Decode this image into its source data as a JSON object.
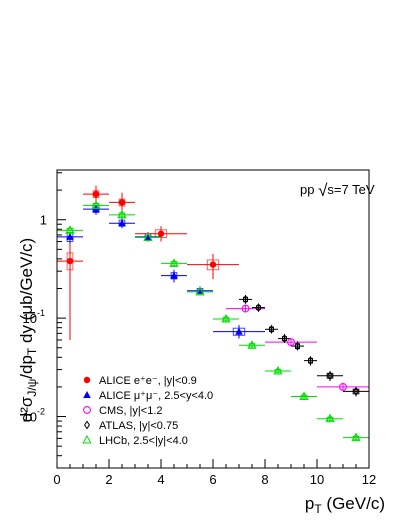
{
  "chart_data": {
    "type": "scatter",
    "xlabel": "p_T (GeV/c)",
    "ylabel": "d²σ_J/ψ /dp_T dy (μb/GeV/c)",
    "xlim": [
      0,
      12
    ],
    "ylim": [
      0.003,
      3.2
    ],
    "yscale": "log",
    "grid": false,
    "legend_position": "bottom-left",
    "annotation": {
      "pre": "pp ",
      "root": "√",
      "post": "s=7 TeV"
    },
    "x_ticks": [
      0,
      2,
      4,
      6,
      8,
      10,
      12
    ],
    "y_ticks": [
      {
        "value": 1,
        "label": "1",
        "exp": ""
      },
      {
        "value": 0.1,
        "label": "10",
        "exp": "-1"
      },
      {
        "value": 0.01,
        "label": "10",
        "exp": "-2"
      }
    ],
    "series": [
      {
        "name": "ALICE e⁺e⁻, |y|<0.9",
        "color": "#ff0000",
        "marker": "filled-circle",
        "box_color": "#ff5050",
        "points": [
          {
            "x": 0.5,
            "y": 0.38,
            "xerr": 0.5,
            "ylo": 0.06,
            "yhi": 0.72,
            "box": [
              0.31,
              0.46
            ]
          },
          {
            "x": 1.5,
            "y": 1.82,
            "xerr": 0.5,
            "ylo": 1.45,
            "yhi": 2.22,
            "box": [
              1.68,
              1.97
            ]
          },
          {
            "x": 2.5,
            "y": 1.5,
            "xerr": 0.5,
            "ylo": 1.22,
            "yhi": 1.88,
            "box": [
              1.38,
              1.62
            ]
          },
          {
            "x": 4.0,
            "y": 0.72,
            "xerr": 1.0,
            "ylo": 0.6,
            "yhi": 0.86,
            "box": [
              0.66,
              0.79
            ]
          },
          {
            "x": 6.0,
            "y": 0.35,
            "xerr": 1.0,
            "ylo": 0.25,
            "yhi": 0.45,
            "box": [
              0.31,
              0.39
            ]
          }
        ]
      },
      {
        "name": "ALICE μ⁺μ⁻, 2.5<y<4.0",
        "color": "#0000ff",
        "marker": "filled-triangle",
        "box_color": "#3333ff",
        "points": [
          {
            "x": 0.5,
            "y": 0.67,
            "xerr": 0.5,
            "ylo": 0.57,
            "yhi": 0.78,
            "box": [
              0.6,
              0.74
            ]
          },
          {
            "x": 1.5,
            "y": 1.28,
            "xerr": 0.5,
            "ylo": 1.12,
            "yhi": 1.45,
            "box": [
              1.18,
              1.38
            ]
          },
          {
            "x": 2.5,
            "y": 0.92,
            "xerr": 0.5,
            "ylo": 0.82,
            "yhi": 1.03,
            "box": [
              0.86,
              0.99
            ]
          },
          {
            "x": 3.5,
            "y": 0.67,
            "xerr": 0.5,
            "ylo": 0.6,
            "yhi": 0.75,
            "box": [
              0.62,
              0.72
            ]
          },
          {
            "x": 4.5,
            "y": 0.27,
            "xerr": 0.5,
            "ylo": 0.23,
            "yhi": 0.31,
            "box": [
              0.25,
              0.29
            ]
          },
          {
            "x": 5.5,
            "y": 0.19,
            "xerr": 0.5,
            "ylo": 0.17,
            "yhi": 0.21,
            "box": [
              0.18,
              0.2
            ]
          },
          {
            "x": 7.0,
            "y": 0.073,
            "xerr": 1.0,
            "ylo": 0.062,
            "yhi": 0.085,
            "box": [
              0.067,
              0.079
            ]
          }
        ]
      },
      {
        "name": "CMS, |y|<1.2",
        "color": "#ff00ff",
        "marker": "open-circle",
        "box_color": "",
        "points": [
          {
            "x": 7.25,
            "y": 0.125,
            "xerr": 0.75,
            "ylo": 0.115,
            "yhi": 0.135,
            "box": null
          },
          {
            "x": 9.0,
            "y": 0.057,
            "xerr": 1.0,
            "ylo": 0.052,
            "yhi": 0.062,
            "box": null
          },
          {
            "x": 11.0,
            "y": 0.02,
            "xerr": 1.0,
            "ylo": 0.018,
            "yhi": 0.022,
            "box": null
          }
        ]
      },
      {
        "name": "ATLAS, |y|<0.75",
        "color": "#000000",
        "marker": "open-diamond",
        "box_color": "#000000",
        "points": [
          {
            "x": 7.25,
            "y": 0.155,
            "xerr": 0.25,
            "ylo": 0.14,
            "yhi": 0.172,
            "box": [
              0.147,
              0.163
            ]
          },
          {
            "x": 7.75,
            "y": 0.128,
            "xerr": 0.25,
            "ylo": 0.116,
            "yhi": 0.141,
            "box": [
              0.122,
              0.134
            ]
          },
          {
            "x": 8.25,
            "y": 0.077,
            "xerr": 0.25,
            "ylo": 0.07,
            "yhi": 0.085,
            "box": [
              0.073,
              0.081
            ]
          },
          {
            "x": 8.75,
            "y": 0.062,
            "xerr": 0.25,
            "ylo": 0.056,
            "yhi": 0.069,
            "box": [
              0.059,
              0.065
            ]
          },
          {
            "x": 9.25,
            "y": 0.052,
            "xerr": 0.25,
            "ylo": 0.047,
            "yhi": 0.058,
            "box": [
              0.049,
              0.055
            ]
          },
          {
            "x": 9.75,
            "y": 0.037,
            "xerr": 0.25,
            "ylo": 0.033,
            "yhi": 0.041,
            "box": [
              0.035,
              0.039
            ]
          },
          {
            "x": 10.5,
            "y": 0.026,
            "xerr": 0.5,
            "ylo": 0.023,
            "yhi": 0.029,
            "box": [
              0.0245,
              0.0275
            ]
          },
          {
            "x": 11.5,
            "y": 0.018,
            "xerr": 0.5,
            "ylo": 0.016,
            "yhi": 0.02,
            "box": [
              0.017,
              0.019
            ]
          }
        ]
      },
      {
        "name": "LHCb, 2.5<|y|<4.0",
        "color": "#00dd00",
        "marker": "open-triangle",
        "box_color": "#00dd00",
        "points": [
          {
            "x": 0.5,
            "y": 0.78,
            "xerr": 0.5,
            "ylo": 0.72,
            "yhi": 0.85,
            "box": [
              0.74,
              0.82
            ]
          },
          {
            "x": 1.5,
            "y": 1.4,
            "xerr": 0.5,
            "ylo": 1.3,
            "yhi": 1.5,
            "box": [
              1.34,
              1.46
            ]
          },
          {
            "x": 2.5,
            "y": 1.12,
            "xerr": 0.5,
            "ylo": 1.04,
            "yhi": 1.21,
            "box": [
              1.07,
              1.17
            ]
          },
          {
            "x": 3.5,
            "y": 0.66,
            "xerr": 0.5,
            "ylo": 0.61,
            "yhi": 0.71,
            "box": [
              0.63,
              0.69
            ]
          },
          {
            "x": 4.5,
            "y": 0.36,
            "xerr": 0.5,
            "ylo": 0.33,
            "yhi": 0.39,
            "box": [
              0.345,
              0.375
            ]
          },
          {
            "x": 5.5,
            "y": 0.185,
            "xerr": 0.5,
            "ylo": 0.172,
            "yhi": 0.199,
            "box": [
              0.177,
              0.193
            ]
          },
          {
            "x": 6.5,
            "y": 0.098,
            "xerr": 0.5,
            "ylo": 0.091,
            "yhi": 0.106,
            "box": [
              0.094,
              0.102
            ]
          },
          {
            "x": 7.5,
            "y": 0.053,
            "xerr": 0.5,
            "ylo": 0.049,
            "yhi": 0.057,
            "box": [
              0.051,
              0.055
            ]
          },
          {
            "x": 8.5,
            "y": 0.029,
            "xerr": 0.5,
            "ylo": 0.027,
            "yhi": 0.031,
            "box": [
              0.028,
              0.03
            ]
          },
          {
            "x": 9.5,
            "y": 0.016,
            "xerr": 0.5,
            "ylo": 0.015,
            "yhi": 0.017,
            "box": [
              0.0155,
              0.0165
            ]
          },
          {
            "x": 10.5,
            "y": 0.0095,
            "xerr": 0.5,
            "ylo": 0.0088,
            "yhi": 0.0102,
            "box": [
              0.0092,
              0.0098
            ]
          },
          {
            "x": 11.5,
            "y": 0.0061,
            "xerr": 0.5,
            "ylo": 0.0056,
            "yhi": 0.0066,
            "box": [
              0.0059,
              0.0063
            ]
          }
        ]
      }
    ]
  }
}
